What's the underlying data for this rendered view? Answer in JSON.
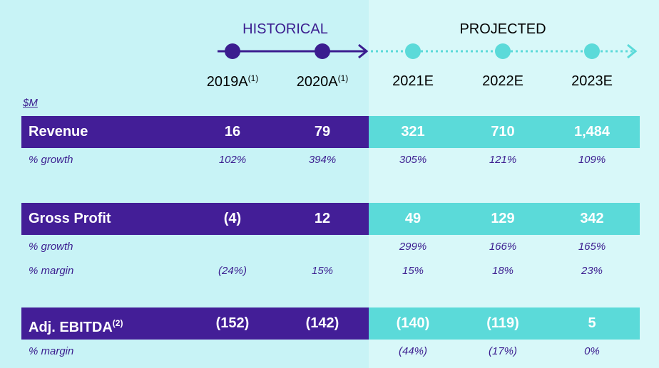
{
  "header": {
    "historical_label": "HISTORICAL",
    "projected_label": "PROJECTED"
  },
  "years": [
    {
      "label": "2019A",
      "note": "(1)"
    },
    {
      "label": "2020A",
      "note": "(1)"
    },
    {
      "label": "2021E",
      "note": ""
    },
    {
      "label": "2022E",
      "note": ""
    },
    {
      "label": "2023E",
      "note": ""
    }
  ],
  "unit_label": "$M",
  "rows": {
    "revenue": {
      "label": "Revenue",
      "values": [
        "16",
        "79",
        "321",
        "710",
        "1,484"
      ],
      "growth": {
        "label": "% growth",
        "values": [
          "102%",
          "394%",
          "305%",
          "121%",
          "109%"
        ]
      }
    },
    "gross_profit": {
      "label": "Gross Profit",
      "values": [
        "(4)",
        "12",
        "49",
        "129",
        "342"
      ],
      "growth": {
        "label": "% growth",
        "values": [
          "",
          "",
          "299%",
          "166%",
          "165%"
        ]
      },
      "margin": {
        "label": "% margin",
        "values": [
          "(24%)",
          "15%",
          "15%",
          "18%",
          "23%"
        ]
      }
    },
    "adj_ebitda": {
      "label": "Adj. EBITDA",
      "note": "(2)",
      "values": [
        "(152)",
        "(142)",
        "(140)",
        "(119)",
        "5"
      ],
      "margin": {
        "label": "% margin",
        "values": [
          "",
          "",
          "(44%)",
          "(17%)",
          "0%"
        ]
      }
    }
  },
  "colors": {
    "historical_band": "#431e97",
    "projected_band": "#5bdad9",
    "background": "#c8f3f6",
    "projected_background": "#d8f8f9",
    "accent_text": "#3b1d8f"
  }
}
